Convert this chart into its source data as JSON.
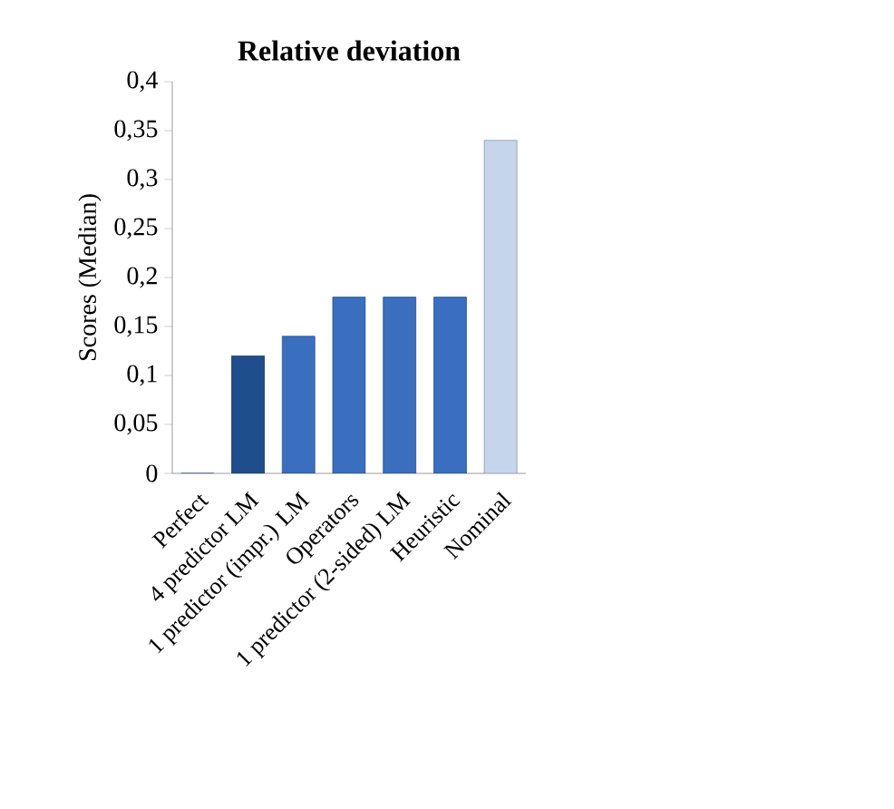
{
  "chart_data": {
    "type": "bar",
    "title": "Relative deviation",
    "ylabel": "Scores (Median)",
    "categories": [
      "Perfect",
      "4 predictor LM",
      "1 predictor (impr.) LM",
      "Operators",
      "1 predictor (2-sided) LM",
      "Heuristic",
      "Nominal"
    ],
    "values": [
      0,
      0.12,
      0.14,
      0.18,
      0.18,
      0.18,
      0.34
    ],
    "colors": [
      "#3a6fc0",
      "#1f4e8c",
      "#3a6fc0",
      "#3a6fc0",
      "#3a6fc0",
      "#3a6fc0",
      "#c5d6ec"
    ],
    "ylim": [
      0,
      0.4
    ],
    "yticks": [
      0,
      {
        "value": 0.05,
        "label": "0,05"
      },
      {
        "value": 0.1,
        "label": "0,1"
      },
      {
        "value": 0.15,
        "label": "0,15"
      },
      {
        "value": 0.2,
        "label": "0,2"
      },
      {
        "value": 0.25,
        "label": "0,25"
      },
      {
        "value": 0.3,
        "label": "0,3"
      },
      {
        "value": 0.35,
        "label": "0,35"
      },
      {
        "value": 0.4,
        "label": "0,4"
      }
    ],
    "grid": false
  }
}
